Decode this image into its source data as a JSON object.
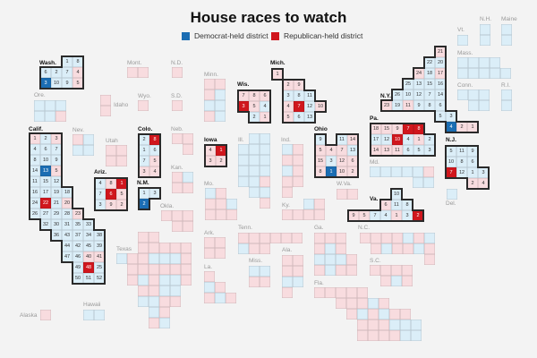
{
  "title": "House races to watch",
  "legend": [
    {
      "label": "Democrat-held district",
      "color": "#1b6db3"
    },
    {
      "label": "Republican-held district",
      "color": "#d0161d"
    }
  ],
  "colors": {
    "D": "#dbeef8",
    "R": "#f8dcdf",
    "D_watch": "#1b6db3",
    "R_watch": "#d0161d"
  },
  "states": [
    {
      "id": "wash",
      "name": "Wash.",
      "watched": true,
      "districts": [
        [
          "1",
          "D",
          0
        ],
        [
          "8",
          "D",
          0
        ],
        [
          "6",
          "D",
          0
        ],
        [
          "2",
          "D",
          0
        ],
        [
          "7",
          "D",
          0
        ],
        [
          "4",
          "R",
          0
        ],
        [
          "3",
          "D",
          1
        ],
        [
          "10",
          "D",
          0
        ],
        [
          "9",
          "D",
          0
        ],
        [
          "5",
          "R",
          0
        ]
      ]
    },
    {
      "id": "ore",
      "name": "Ore.",
      "parties": "DDDDDR"
    },
    {
      "id": "idaho",
      "name": "Idaho",
      "parties": "RR"
    },
    {
      "id": "mont",
      "name": "Mont.",
      "parties": "RR"
    },
    {
      "id": "wyo",
      "name": "Wyo.",
      "parties": "R"
    },
    {
      "id": "nd",
      "name": "N.D.",
      "parties": "R"
    },
    {
      "id": "sd",
      "name": "S.D.",
      "parties": "R"
    },
    {
      "id": "minn",
      "name": "Minn.",
      "parties": "RRRDDDRD"
    },
    {
      "id": "wis",
      "name": "Wis.",
      "watched": true,
      "districts": [
        [
          "7",
          "R",
          0
        ],
        [
          "8",
          "R",
          0
        ],
        [
          "6",
          "R",
          0
        ],
        [
          "3",
          "R",
          1
        ],
        [
          "5",
          "R",
          0
        ],
        [
          "4",
          "D",
          0
        ],
        [
          "2",
          "D",
          0
        ],
        [
          "1",
          "R",
          0
        ]
      ]
    },
    {
      "id": "mich",
      "name": "Mich.",
      "watched": true,
      "districts": [
        [
          "1",
          "R",
          0
        ],
        [
          "2",
          "R",
          0
        ],
        [
          "9",
          "R",
          0
        ],
        [
          "3",
          "D",
          0
        ],
        [
          "8",
          "D",
          0
        ],
        [
          "11",
          "D",
          0
        ],
        [
          "4",
          "R",
          0
        ],
        [
          "7",
          "R",
          1
        ],
        [
          "12",
          "D",
          0
        ],
        [
          "10",
          "R",
          0
        ],
        [
          "5",
          "R",
          0
        ],
        [
          "6",
          "D",
          0
        ],
        [
          "13",
          "D",
          0
        ]
      ]
    },
    {
      "id": "calif",
      "name": "Calif.",
      "watched": true,
      "districts": [
        [
          "1",
          "R",
          0
        ],
        [
          "2",
          "D",
          0
        ],
        [
          "3",
          "R",
          0
        ],
        [
          "4",
          "D",
          0
        ],
        [
          "6",
          "D",
          0
        ],
        [
          "7",
          "D",
          0
        ],
        [
          "8",
          "D",
          0
        ],
        [
          "10",
          "D",
          0
        ],
        [
          "9",
          "D",
          0
        ],
        [
          "14",
          "D",
          0
        ],
        [
          "13",
          "D",
          1
        ],
        [
          "5",
          "R",
          0
        ],
        [
          "11",
          "D",
          0
        ],
        [
          "15",
          "D",
          0
        ],
        [
          "12",
          "D",
          0
        ],
        [
          "16",
          "D",
          0
        ],
        [
          "17",
          "D",
          0
        ],
        [
          "19",
          "D",
          0
        ],
        [
          "18",
          "D",
          0
        ],
        [
          "24",
          "D",
          0
        ],
        [
          "22",
          "R",
          1
        ],
        [
          "21",
          "D",
          0
        ],
        [
          "20",
          "R",
          0
        ],
        [
          "26",
          "D",
          0
        ],
        [
          "27",
          "D",
          0
        ],
        [
          "29",
          "D",
          0
        ],
        [
          "28",
          "D",
          0
        ],
        [
          "23",
          "R",
          0
        ],
        [
          "32",
          "D",
          0
        ],
        [
          "30",
          "D",
          0
        ],
        [
          "31",
          "D",
          0
        ],
        [
          "35",
          "D",
          0
        ],
        [
          "33",
          "D",
          0
        ],
        [
          "36",
          "D",
          0
        ],
        [
          "43",
          "D",
          0
        ],
        [
          "37",
          "D",
          0
        ],
        [
          "34",
          "D",
          0
        ],
        [
          "38",
          "D",
          0
        ],
        [
          "44",
          "D",
          0
        ],
        [
          "42",
          "D",
          0
        ],
        [
          "45",
          "D",
          0
        ],
        [
          "39",
          "D",
          0
        ],
        [
          "47",
          "D",
          0
        ],
        [
          "46",
          "D",
          0
        ],
        [
          "40",
          "R",
          0
        ],
        [
          "41",
          "R",
          0
        ],
        [
          "49",
          "D",
          0
        ],
        [
          "48",
          "R",
          1
        ],
        [
          "25",
          "D",
          0
        ],
        [
          "50",
          "D",
          0
        ],
        [
          "51",
          "D",
          0
        ],
        [
          "52",
          "D",
          0
        ]
      ]
    },
    {
      "id": "nev",
      "name": "Nev.",
      "parties": "RDDD"
    },
    {
      "id": "utah",
      "name": "Utah",
      "parties": "RRRR"
    },
    {
      "id": "colo",
      "name": "Colo.",
      "watched": true,
      "districts": [
        [
          "2",
          "D",
          0
        ],
        [
          "8",
          "R",
          1
        ],
        [
          "1",
          "D",
          0
        ],
        [
          "6",
          "D",
          0
        ],
        [
          "7",
          "D",
          0
        ],
        [
          "5",
          "R",
          0
        ],
        [
          "3",
          "R",
          0
        ],
        [
          "4",
          "R",
          0
        ]
      ]
    },
    {
      "id": "neb",
      "name": "Neb.",
      "parties": "RRR"
    },
    {
      "id": "kan",
      "name": "Kan.",
      "parties": "RDRR"
    },
    {
      "id": "iowa",
      "name": "Iowa",
      "watched": true,
      "districts": [
        [
          "4",
          "R",
          0
        ],
        [
          "1",
          "R",
          1
        ],
        [
          "3",
          "R",
          0
        ],
        [
          "2",
          "R",
          0
        ]
      ]
    },
    {
      "id": "ill",
      "name": "Ill.",
      "parties": "DDDDDDDDDDDDDRDDRR"
    },
    {
      "id": "ind",
      "name": "Ind.",
      "parties": "DRRRDRRRR"
    },
    {
      "id": "ohio",
      "name": "Ohio",
      "watched": true,
      "districts": [
        [
          "9",
          "D",
          0
        ],
        [
          "11",
          "D",
          0
        ],
        [
          "14",
          "R",
          0
        ],
        [
          "5",
          "R",
          0
        ],
        [
          "4",
          "R",
          0
        ],
        [
          "7",
          "R",
          0
        ],
        [
          "13",
          "D",
          0
        ],
        [
          "15",
          "R",
          0
        ],
        [
          "3",
          "D",
          0
        ],
        [
          "12",
          "R",
          0
        ],
        [
          "6",
          "R",
          0
        ],
        [
          "8",
          "R",
          0
        ],
        [
          "1",
          "D",
          1
        ],
        [
          "10",
          "R",
          0
        ],
        [
          "2",
          "R",
          0
        ]
      ]
    },
    {
      "id": "ariz",
      "name": "Ariz.",
      "watched": true,
      "districts": [
        [
          "4",
          "D",
          0
        ],
        [
          "8",
          "R",
          0
        ],
        [
          "1",
          "R",
          1
        ],
        [
          "7",
          "D",
          0
        ],
        [
          "6",
          "R",
          1
        ],
        [
          "5",
          "R",
          0
        ],
        [
          "3",
          "D",
          0
        ],
        [
          "9",
          "R",
          0
        ],
        [
          "2",
          "R",
          0
        ]
      ]
    },
    {
      "id": "nm",
      "name": "N.M.",
      "watched": true,
      "districts": [
        [
          "1",
          "D",
          0
        ],
        [
          "3",
          "D",
          0
        ],
        [
          "2",
          "D",
          1
        ]
      ]
    },
    {
      "id": "okla",
      "name": "Okla.",
      "parties": "RRRRR"
    },
    {
      "id": "texas",
      "name": "Texas",
      "parties": "RRRRRRRDRRDDDRRRRRRRRDRDDRRRDDDDRRDRRD"
    },
    {
      "id": "mo",
      "name": "Mo.",
      "parties": "DRRRDRRR"
    },
    {
      "id": "ark",
      "name": "Ark.",
      "parties": "RRRR"
    },
    {
      "id": "la",
      "name": "La.",
      "parties": "RDRRDR"
    },
    {
      "id": "tenn",
      "name": "Tenn.",
      "parties": "RRRRRRDRR"
    },
    {
      "id": "miss",
      "name": "Miss.",
      "parties": "DDRR"
    },
    {
      "id": "ala",
      "name": "Ala.",
      "parties": "RRRRDDR"
    },
    {
      "id": "ky",
      "name": "Ky.",
      "parties": "DRRRRR"
    },
    {
      "id": "wva",
      "name": "W.Va.",
      "parties": "RR"
    },
    {
      "id": "ga",
      "name": "Ga.",
      "parties": "RRRRDRDDDRRDRR"
    },
    {
      "id": "nc",
      "name": "N.C.",
      "parties": "RRRRDRDRDRRDRR"
    },
    {
      "id": "sc",
      "name": "S.C.",
      "parties": "RRRRRDR"
    },
    {
      "id": "fla",
      "name": "Fla.",
      "parties": "RRRRRRRRDRRDRDRRRRRDDDRRRRDD"
    },
    {
      "id": "va",
      "name": "Va.",
      "watched": true,
      "districts": [
        [
          "10",
          "D",
          0
        ],
        [
          "6",
          "R",
          0
        ],
        [
          "11",
          "D",
          0
        ],
        [
          "8",
          "D",
          0
        ],
        [
          "9",
          "R",
          0
        ],
        [
          "5",
          "R",
          0
        ],
        [
          "7",
          "D",
          0
        ],
        [
          "4",
          "D",
          0
        ],
        [
          "1",
          "R",
          0
        ],
        [
          "3",
          "D",
          0
        ],
        [
          "2",
          "R",
          1
        ]
      ]
    },
    {
      "id": "md",
      "name": "Md.",
      "parties": "DDDDDRDD"
    },
    {
      "id": "del",
      "name": "Del.",
      "parties": "D"
    },
    {
      "id": "pa",
      "name": "Pa.",
      "watched": true,
      "districts": [
        [
          "18",
          "R",
          0
        ],
        [
          "15",
          "R",
          0
        ],
        [
          "9",
          "R",
          0
        ],
        [
          "7",
          "R",
          1
        ],
        [
          "8",
          "R",
          1
        ],
        [
          "17",
          "D",
          0
        ],
        [
          "12",
          "D",
          0
        ],
        [
          "10",
          "R",
          1
        ],
        [
          "4",
          "D",
          0
        ],
        [
          "1",
          "R",
          0
        ],
        [
          "2",
          "D",
          0
        ],
        [
          "14",
          "R",
          0
        ],
        [
          "13",
          "R",
          0
        ],
        [
          "11",
          "R",
          0
        ],
        [
          "6",
          "D",
          0
        ],
        [
          "5",
          "D",
          0
        ],
        [
          "3",
          "D",
          0
        ]
      ]
    },
    {
      "id": "nj",
      "name": "N.J.",
      "watched": true,
      "districts": [
        [
          "5",
          "D",
          0
        ],
        [
          "11",
          "D",
          0
        ],
        [
          "9",
          "D",
          0
        ],
        [
          "10",
          "D",
          0
        ],
        [
          "8",
          "D",
          0
        ],
        [
          "6",
          "D",
          0
        ],
        [
          "7",
          "R",
          1
        ],
        [
          "12",
          "D",
          0
        ],
        [
          "1",
          "D",
          0
        ],
        [
          "3",
          "D",
          0
        ],
        [
          "2",
          "R",
          0
        ],
        [
          "4",
          "R",
          0
        ]
      ]
    },
    {
      "id": "ny",
      "name": "N.Y.",
      "watched": true,
      "districts": [
        [
          "21",
          "R",
          0
        ],
        [
          "22",
          "D",
          0
        ],
        [
          "20",
          "D",
          0
        ],
        [
          "24",
          "R",
          0
        ],
        [
          "18",
          "D",
          0
        ],
        [
          "17",
          "R",
          0
        ],
        [
          "25",
          "D",
          0
        ],
        [
          "13",
          "D",
          0
        ],
        [
          "15",
          "D",
          0
        ],
        [
          "16",
          "D",
          0
        ],
        [
          "26",
          "D",
          0
        ],
        [
          "10",
          "D",
          0
        ],
        [
          "12",
          "D",
          0
        ],
        [
          "7",
          "D",
          0
        ],
        [
          "14",
          "D",
          0
        ],
        [
          "23",
          "R",
          0
        ],
        [
          "19",
          "D",
          0
        ],
        [
          "11",
          "R",
          0
        ],
        [
          "9",
          "D",
          0
        ],
        [
          "8",
          "D",
          0
        ],
        [
          "6",
          "D",
          0
        ],
        [
          "5",
          "D",
          0
        ],
        [
          "3",
          "D",
          0
        ],
        [
          "4",
          "D",
          1
        ],
        [
          "2",
          "R",
          0
        ],
        [
          "1",
          "R",
          0
        ]
      ]
    },
    {
      "id": "vt",
      "name": "Vt.",
      "parties": "D"
    },
    {
      "id": "nh",
      "name": "N.H.",
      "parties": "DD"
    },
    {
      "id": "maine",
      "name": "Maine",
      "parties": "DD"
    },
    {
      "id": "mass",
      "name": "Mass.",
      "parties": "DDDDDDDDD"
    },
    {
      "id": "conn",
      "name": "Conn.",
      "parties": "DDDDD"
    },
    {
      "id": "ri",
      "name": "R.I.",
      "parties": "DD"
    },
    {
      "id": "alaska",
      "name": "Alaska",
      "parties": "R"
    },
    {
      "id": "hawaii",
      "name": "Hawaii",
      "parties": "DD"
    }
  ]
}
